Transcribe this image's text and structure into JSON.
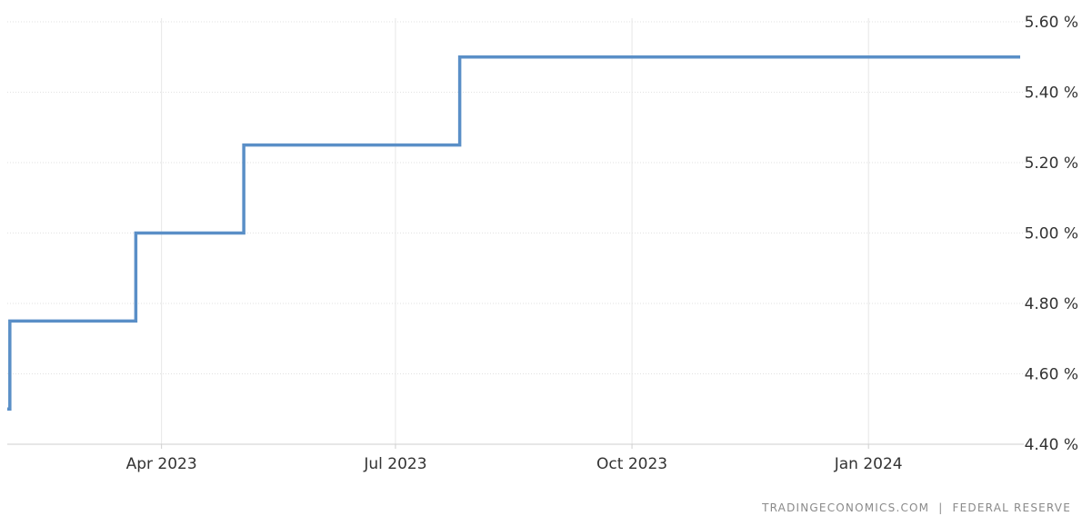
{
  "chart_data": {
    "type": "line",
    "step": true,
    "title": "",
    "xlabel": "",
    "ylabel": "",
    "ylim": [
      4.4,
      5.6
    ],
    "y_ticks": [
      {
        "value": 4.4,
        "label": "4.40 %"
      },
      {
        "value": 4.6,
        "label": "4.60 %"
      },
      {
        "value": 4.8,
        "label": "4.80 %"
      },
      {
        "value": 5.0,
        "label": "5.00 %"
      },
      {
        "value": 5.2,
        "label": "5.20 %"
      },
      {
        "value": 5.4,
        "label": "5.40 %"
      },
      {
        "value": 5.6,
        "label": "5.60 %"
      }
    ],
    "xlim": [
      "2023-01-31",
      "2024-02-29"
    ],
    "x_ticks": [
      {
        "value": "2023-04-01",
        "label": "Apr 2023"
      },
      {
        "value": "2023-07-01",
        "label": "Jul 2023"
      },
      {
        "value": "2023-10-01",
        "label": "Oct 2023"
      },
      {
        "value": "2024-01-01",
        "label": "Jan 2024"
      }
    ],
    "grid": true,
    "color": "#5a8fc7",
    "series": [
      {
        "points": [
          {
            "x": "2023-01-31",
            "y": 4.5
          },
          {
            "x": "2023-02-01",
            "y": 4.75
          },
          {
            "x": "2023-03-22",
            "y": 5.0
          },
          {
            "x": "2023-05-03",
            "y": 5.25
          },
          {
            "x": "2023-07-26",
            "y": 5.5
          },
          {
            "x": "2024-02-29",
            "y": 5.5
          }
        ]
      }
    ],
    "source_text": "TRADINGECONOMICS.COM  |  FEDERAL RESERVE"
  }
}
